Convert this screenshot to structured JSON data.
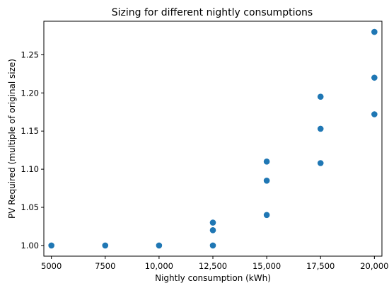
{
  "chart_data": {
    "type": "scatter",
    "title": "Sizing for different nightly consumptions",
    "xlabel": "Nightly consumption (kWh)",
    "ylabel": "PV Required (multiple of original size)",
    "xlim": [
      4650,
      20350
    ],
    "ylim": [
      0.986,
      1.294
    ],
    "x_ticks": [
      5000,
      7500,
      10000,
      12500,
      15000,
      17500,
      20000
    ],
    "x_tick_labels": [
      "5000",
      "7500",
      "10,000",
      "12,500",
      "15,000",
      "17,500",
      "20,000"
    ],
    "y_ticks": [
      1.0,
      1.05,
      1.1,
      1.15,
      1.2,
      1.25
    ],
    "y_tick_labels": [
      "1.00",
      "1.05",
      "1.10",
      "1.15",
      "1.20",
      "1.25"
    ],
    "grid": false,
    "marker_color": "#1f77b4",
    "points": [
      {
        "x": 5000,
        "y": 1.0
      },
      {
        "x": 7500,
        "y": 1.0
      },
      {
        "x": 10000,
        "y": 1.0
      },
      {
        "x": 12500,
        "y": 1.0
      },
      {
        "x": 12500,
        "y": 1.02
      },
      {
        "x": 12500,
        "y": 1.03
      },
      {
        "x": 15000,
        "y": 1.04
      },
      {
        "x": 15000,
        "y": 1.085
      },
      {
        "x": 15000,
        "y": 1.11
      },
      {
        "x": 17500,
        "y": 1.108
      },
      {
        "x": 17500,
        "y": 1.153
      },
      {
        "x": 17500,
        "y": 1.195
      },
      {
        "x": 20000,
        "y": 1.172
      },
      {
        "x": 20000,
        "y": 1.22
      },
      {
        "x": 20000,
        "y": 1.28
      }
    ]
  }
}
